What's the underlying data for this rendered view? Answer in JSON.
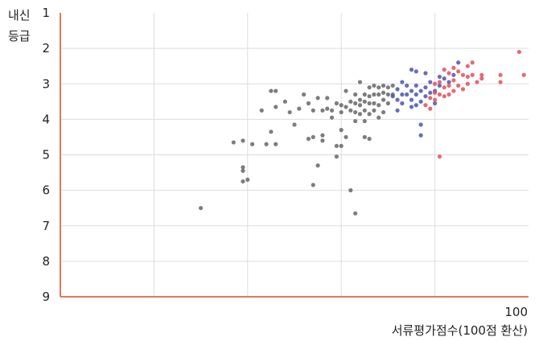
{
  "chart_data": {
    "type": "scatter",
    "title": "",
    "ylabel_lines": [
      "내신",
      "등급"
    ],
    "xlabel": "서류평가점수(100점 환산)",
    "x_max_label": "100",
    "xlim": [
      0,
      100
    ],
    "ylim": [
      1,
      9
    ],
    "y_inverted": true,
    "yticks": [
      "1",
      "2",
      "3",
      "4",
      "5",
      "6",
      "7",
      "8",
      "9"
    ],
    "grid": true,
    "legend": "none",
    "colors": {
      "axis": "#e07a55",
      "grid": "#dddddd",
      "gray": "#666666",
      "blue": "#4a55b0",
      "red": "#e0505a"
    },
    "series": [
      {
        "color": "gray",
        "points": [
          [
            30,
            6.5
          ],
          [
            37,
            4.65
          ],
          [
            39,
            4.6
          ],
          [
            39,
            5.35
          ],
          [
            39,
            5.45
          ],
          [
            39,
            5.75
          ],
          [
            40,
            5.7
          ],
          [
            41,
            4.7
          ],
          [
            43,
            3.75
          ],
          [
            44,
            4.7
          ],
          [
            45,
            3.2
          ],
          [
            45,
            4.35
          ],
          [
            46,
            3.2
          ],
          [
            46,
            3.65
          ],
          [
            46,
            4.7
          ],
          [
            48,
            3.5
          ],
          [
            49,
            3.8
          ],
          [
            50,
            4.15
          ],
          [
            51,
            3.7
          ],
          [
            52,
            3.3
          ],
          [
            53,
            3.55
          ],
          [
            53,
            4.55
          ],
          [
            54,
            3.75
          ],
          [
            54,
            4.5
          ],
          [
            54,
            5.85
          ],
          [
            55,
            3.4
          ],
          [
            55,
            5.3
          ],
          [
            56,
            3.75
          ],
          [
            56,
            4.45
          ],
          [
            56,
            4.6
          ],
          [
            57,
            3.4
          ],
          [
            57,
            3.7
          ],
          [
            58,
            3.75
          ],
          [
            58,
            3.95
          ],
          [
            59,
            3.55
          ],
          [
            59,
            4.75
          ],
          [
            59,
            5.05
          ],
          [
            60,
            3.6
          ],
          [
            60,
            3.8
          ],
          [
            60,
            4.3
          ],
          [
            60,
            4.75
          ],
          [
            61,
            3.2
          ],
          [
            61,
            3.65
          ],
          [
            61,
            4.5
          ],
          [
            62,
            3.5
          ],
          [
            62,
            3.75
          ],
          [
            62,
            6.0
          ],
          [
            63,
            3.3
          ],
          [
            63,
            3.55
          ],
          [
            63,
            3.8
          ],
          [
            63,
            4.05
          ],
          [
            63,
            6.65
          ],
          [
            64,
            2.95
          ],
          [
            64,
            3.45
          ],
          [
            64,
            3.6
          ],
          [
            64,
            3.85
          ],
          [
            65,
            3.3
          ],
          [
            65,
            3.5
          ],
          [
            65,
            3.75
          ],
          [
            65,
            4.05
          ],
          [
            65,
            4.5
          ],
          [
            66,
            3.1
          ],
          [
            66,
            3.35
          ],
          [
            66,
            3.55
          ],
          [
            66,
            3.85
          ],
          [
            66,
            4.55
          ],
          [
            67,
            3.05
          ],
          [
            67,
            3.3
          ],
          [
            67,
            3.55
          ],
          [
            67,
            3.75
          ],
          [
            68,
            3.1
          ],
          [
            68,
            3.3
          ],
          [
            68,
            3.6
          ],
          [
            68,
            3.95
          ],
          [
            69,
            3.05
          ],
          [
            69,
            3.25
          ],
          [
            69,
            3.45
          ],
          [
            69,
            3.8
          ],
          [
            70,
            3.1
          ],
          [
            70,
            3.3
          ],
          [
            70,
            3.55
          ],
          [
            71,
            3.05
          ],
          [
            71,
            3.3
          ]
        ]
      },
      {
        "color": "blue",
        "points": [
          [
            71,
            3.35
          ],
          [
            72,
            3.15
          ],
          [
            72,
            3.45
          ],
          [
            72,
            3.75
          ],
          [
            73,
            2.95
          ],
          [
            73,
            3.3
          ],
          [
            73,
            3.55
          ],
          [
            74,
            3.05
          ],
          [
            74,
            3.3
          ],
          [
            75,
            2.6
          ],
          [
            75,
            3.2
          ],
          [
            75,
            3.45
          ],
          [
            75,
            3.65
          ],
          [
            76,
            2.65
          ],
          [
            76,
            3.05
          ],
          [
            76,
            3.3
          ],
          [
            76,
            3.6
          ],
          [
            77,
            3.2
          ],
          [
            77,
            3.5
          ],
          [
            77,
            4.15
          ],
          [
            77,
            4.45
          ],
          [
            78,
            2.7
          ],
          [
            78,
            3.1
          ],
          [
            78,
            3.35
          ],
          [
            79,
            2.95
          ],
          [
            79,
            3.25
          ],
          [
            80,
            3.2
          ],
          [
            80,
            3.55
          ],
          [
            81,
            2.8
          ],
          [
            81,
            3.05
          ],
          [
            82,
            2.85
          ],
          [
            83,
            2.95
          ],
          [
            84,
            2.75
          ],
          [
            85,
            2.4
          ]
        ]
      },
      {
        "color": "red",
        "points": [
          [
            78,
            3.6
          ],
          [
            79,
            3.4
          ],
          [
            79,
            3.7
          ],
          [
            80,
            3.0
          ],
          [
            80,
            3.25
          ],
          [
            80,
            3.45
          ],
          [
            81,
            2.95
          ],
          [
            81,
            3.3
          ],
          [
            81,
            5.05
          ],
          [
            82,
            2.6
          ],
          [
            82,
            3.1
          ],
          [
            82,
            3.35
          ],
          [
            83,
            2.7
          ],
          [
            83,
            3.05
          ],
          [
            83,
            3.3
          ],
          [
            84,
            2.55
          ],
          [
            84,
            2.9
          ],
          [
            84,
            3.2
          ],
          [
            85,
            2.65
          ],
          [
            85,
            3.05
          ],
          [
            86,
            2.75
          ],
          [
            86,
            3.15
          ],
          [
            87,
            2.5
          ],
          [
            87,
            2.8
          ],
          [
            87,
            3.0
          ],
          [
            88,
            2.4
          ],
          [
            88,
            2.75
          ],
          [
            89,
            2.95
          ],
          [
            90,
            2.75
          ],
          [
            90,
            2.85
          ],
          [
            94,
            2.75
          ],
          [
            94,
            2.95
          ],
          [
            98,
            2.1
          ],
          [
            99,
            2.75
          ]
        ]
      }
    ]
  }
}
